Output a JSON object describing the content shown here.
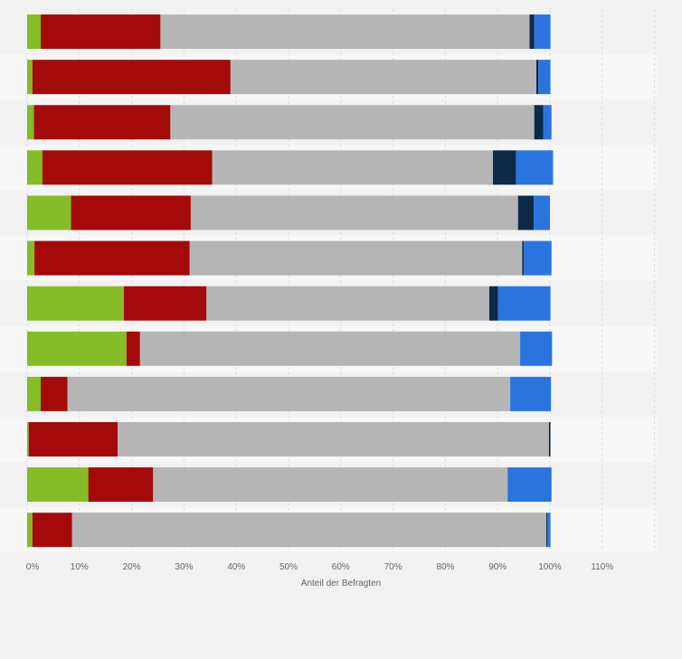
{
  "chart_data": {
    "type": "bar",
    "orientation": "horizontal",
    "stacked": true,
    "xlabel": "Anteil der Befragten",
    "xlim": [
      0,
      120
    ],
    "x_ticks": [
      "0%",
      "10%",
      "20%",
      "30%",
      "40%",
      "50%",
      "60%",
      "70%",
      "80%",
      "90%",
      "100%",
      "110%"
    ],
    "grid": "vertical dashed",
    "legend": "none",
    "categories": [
      "",
      "",
      "",
      "",
      "",
      "",
      "",
      "",
      "",
      "",
      "",
      ""
    ],
    "series": [
      {
        "color": "#86bc25",
        "values": [
          2.6,
          1.0,
          1.3,
          2.9,
          8.4,
          1.4,
          18.5,
          19.0,
          2.6,
          0.3,
          11.7,
          1.0
        ]
      },
      {
        "color": "#a50a0a",
        "values": [
          22.9,
          37.9,
          26.1,
          32.5,
          22.9,
          29.7,
          15.8,
          2.6,
          5.1,
          17.0,
          12.4,
          7.6
        ]
      },
      {
        "color": "#b5b5b5",
        "values": [
          70.6,
          58.5,
          69.6,
          53.7,
          62.6,
          63.6,
          54.1,
          72.7,
          84.7,
          82.5,
          67.8,
          90.7
        ]
      },
      {
        "color": "#0d2a47",
        "values": [
          0.9,
          0.4,
          1.7,
          4.4,
          3.0,
          0.3,
          1.7,
          0.0,
          0.0,
          0.3,
          0.0,
          0.2
        ]
      },
      {
        "color": "#2b74df",
        "values": [
          3.1,
          2.3,
          1.6,
          7.1,
          3.1,
          5.3,
          10.0,
          6.1,
          7.8,
          0.0,
          8.4,
          0.6
        ]
      }
    ]
  }
}
